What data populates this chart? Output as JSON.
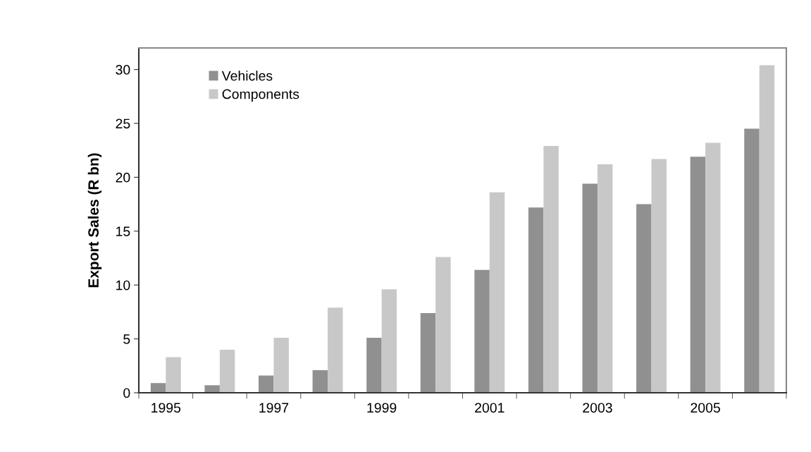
{
  "chart_data": {
    "type": "bar",
    "ylabel": "Export Sales (R bn)",
    "categories": [
      "1995",
      null,
      "1997",
      null,
      "1999",
      null,
      "2001",
      null,
      "2003",
      null,
      "2005",
      null
    ],
    "series": [
      {
        "name": "Vehicles",
        "color": "#909090",
        "values": [
          0.9,
          0.7,
          1.6,
          2.1,
          5.1,
          7.4,
          11.4,
          17.2,
          19.4,
          17.5,
          21.9,
          24.5
        ]
      },
      {
        "name": "Components",
        "color": "#c8c8c8",
        "values": [
          3.3,
          4.0,
          5.1,
          7.9,
          9.6,
          12.6,
          18.6,
          22.9,
          21.2,
          21.7,
          23.2,
          30.4
        ]
      }
    ],
    "ylim": [
      0,
      32
    ],
    "yticks": [
      0,
      5,
      10,
      15,
      20,
      25,
      30
    ],
    "grid": false,
    "legend": "top left"
  }
}
